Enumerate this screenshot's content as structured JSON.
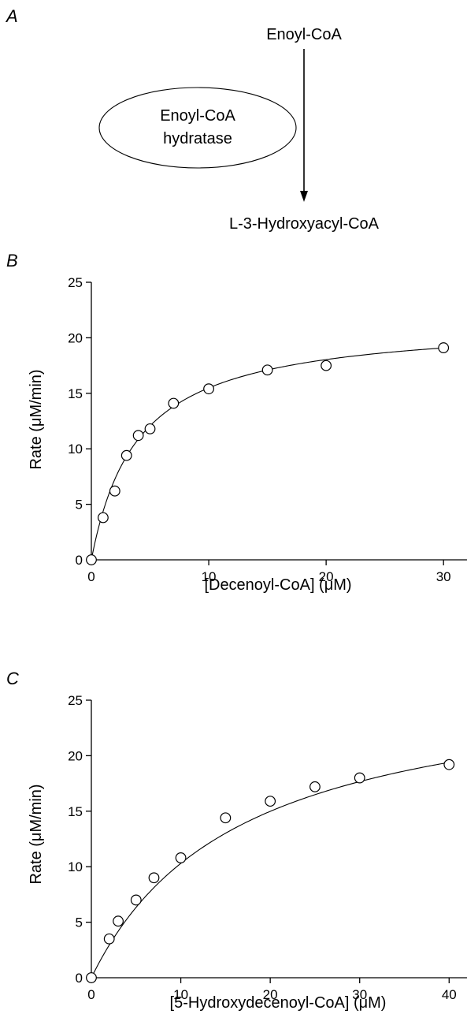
{
  "panel_a": {
    "letter": "A",
    "substrate": "Enoyl-CoA",
    "enzyme_line1": "Enoyl-CoA",
    "enzyme_line2": "hydratase",
    "product": "L-3-Hydroxyacyl-CoA"
  },
  "chart_data": [
    {
      "type": "scatter",
      "panel": "B",
      "xlabel": "[Decenoyl-CoA] (μM)",
      "ylabel": "Rate (μM/min)",
      "xlim": [
        0,
        32
      ],
      "ylim": [
        0,
        25
      ],
      "xticks": [
        0,
        10,
        20,
        30
      ],
      "yticks": [
        0,
        5,
        10,
        15,
        20,
        25
      ],
      "grid": false,
      "fit": {
        "model": "michaelis-menten",
        "vmax": 21.6,
        "km": 3.95
      },
      "x": [
        0,
        1,
        2,
        3,
        4,
        5,
        7,
        10,
        15,
        20,
        30
      ],
      "y": [
        0,
        3.8,
        6.2,
        9.4,
        11.2,
        11.8,
        14.1,
        15.4,
        17.1,
        17.5,
        19.1
      ]
    },
    {
      "type": "scatter",
      "panel": "C",
      "xlabel": "[5-Hydroxydecenoyl-CoA] (μM)",
      "ylabel": "Rate (μM/min)",
      "xlim": [
        0,
        42
      ],
      "ylim": [
        0,
        25
      ],
      "xticks": [
        0,
        10,
        20,
        30,
        40
      ],
      "yticks": [
        0,
        5,
        10,
        15,
        20,
        25
      ],
      "grid": false,
      "fit": {
        "model": "michaelis-menten",
        "vmax": 27.5,
        "km": 16.7
      },
      "x": [
        0,
        2,
        3,
        5,
        7,
        10,
        15,
        20,
        25,
        30,
        40
      ],
      "y": [
        0,
        3.5,
        5.1,
        7.0,
        9.0,
        10.8,
        14.4,
        15.9,
        17.2,
        18.0,
        19.2
      ]
    }
  ]
}
